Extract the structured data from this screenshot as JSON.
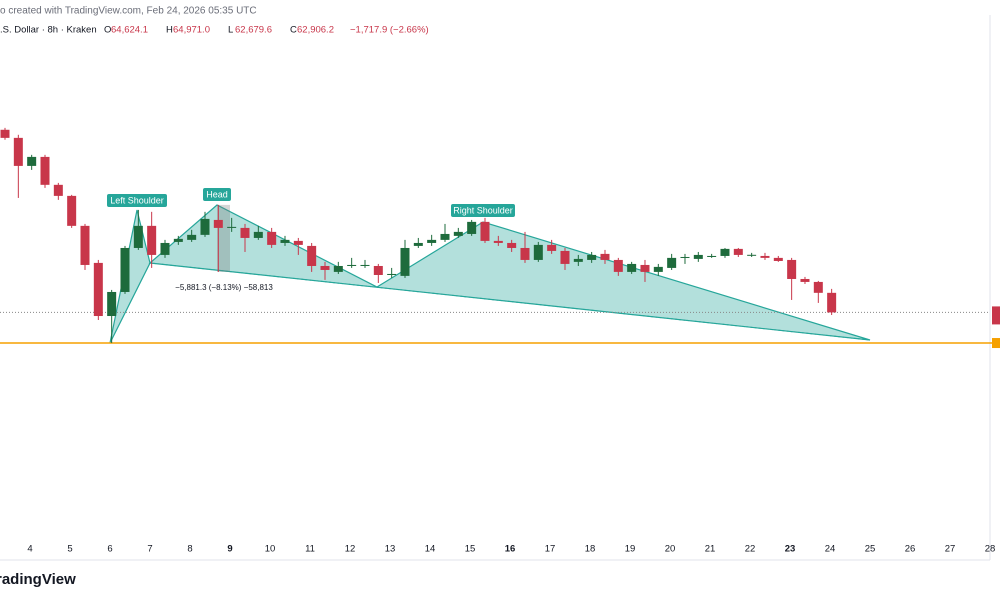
{
  "chart_data": {
    "type": "candlestick",
    "header": "o created with TradingView.com, Feb 24, 2026 05:35 UTC",
    "symbol": ".S. Dollar · 8h · Kraken",
    "legend_fields": [
      {
        "key": "O",
        "value": 64624.1,
        "label": "64,624.1"
      },
      {
        "key": "H",
        "value": 64971.0,
        "label": "64,971.0"
      },
      {
        "key": "L",
        "value": 62679.6,
        "label": "62,679.6"
      },
      {
        "key": "C",
        "value": 62906.2,
        "label": "62,906.2"
      }
    ],
    "change": {
      "value": -1717.9,
      "label": "−1,717.9 (−2.66%)"
    },
    "up_color": "#1e6b3c",
    "down_color": "#c8364a",
    "open": [
      78930,
      78220,
      75760,
      76550,
      74100,
      73130,
      70500,
      67250,
      62590,
      64700,
      68560,
      70500,
      67950,
      69090,
      69270,
      69710,
      71020,
      70320,
      70320,
      69440,
      69970,
      69000,
      69180,
      68740,
      66980,
      66460,
      66980,
      66980,
      66980,
      66190,
      66110,
      68740,
      69000,
      69270,
      69620,
      69790,
      70850,
      69180,
      69000,
      68560,
      67510,
      68830,
      68300,
      67340,
      67510,
      68040,
      67510,
      66460,
      67070,
      66460,
      66810,
      67690,
      67600,
      67770,
      67860,
      68480,
      67950,
      67860,
      67690,
      67510,
      65840,
      65580,
      64624.1
    ],
    "high": [
      79100,
      78490,
      76730,
      76730,
      74270,
      73220,
      70670,
      67510,
      64880,
      68740,
      71900,
      71730,
      69270,
      69620,
      70150,
      71730,
      72340,
      71200,
      70670,
      70500,
      70320,
      69620,
      69440,
      69000,
      67340,
      67340,
      67690,
      67510,
      67160,
      66810,
      69270,
      69440,
      69710,
      70670,
      70320,
      71020,
      71200,
      69620,
      69270,
      69970,
      69090,
      69270,
      68560,
      67950,
      68210,
      68390,
      67690,
      67340,
      67510,
      67160,
      68040,
      68040,
      68210,
      68040,
      68560,
      68560,
      68130,
      68130,
      67860,
      67690,
      66020,
      65670,
      64971.0
    ],
    "low": [
      78050,
      72950,
      75410,
      73830,
      72780,
      70320,
      66630,
      62240,
      60220,
      64530,
      68390,
      66810,
      67690,
      68830,
      69090,
      69530,
      66460,
      69970,
      68210,
      69270,
      68560,
      68740,
      67950,
      66460,
      65760,
      66280,
      66810,
      66810,
      65490,
      65930,
      65930,
      68560,
      68740,
      69090,
      69440,
      69620,
      69000,
      68740,
      68210,
      67250,
      67340,
      68040,
      66630,
      66980,
      67250,
      67160,
      66110,
      66280,
      65580,
      66110,
      66630,
      67160,
      67340,
      67690,
      67690,
      67770,
      67770,
      67510,
      67340,
      64000,
      65400,
      63740,
      62679.6
    ],
    "close": [
      78220,
      75760,
      76550,
      74100,
      73130,
      70500,
      67070,
      62590,
      64700,
      68560,
      70500,
      67950,
      69000,
      69360,
      69710,
      71110,
      70320,
      70410,
      69440,
      69970,
      68830,
      69270,
      68830,
      66980,
      66630,
      66980,
      67070,
      67070,
      66190,
      66280,
      68560,
      69000,
      69270,
      69790,
      69970,
      70850,
      69180,
      69000,
      68560,
      67510,
      68830,
      68300,
      67160,
      67600,
      67950,
      67510,
      66460,
      67160,
      66460,
      66900,
      67690,
      67770,
      67950,
      67860,
      68480,
      67950,
      67960,
      67690,
      67420,
      65840,
      65580,
      64624.1,
      62906.2
    ],
    "ylim": [
      42500,
      89000
    ],
    "support_level": 60220,
    "x_tick_labels": [
      "4",
      "5",
      "6",
      "7",
      "8",
      "9",
      "10",
      "11",
      "12",
      "13",
      "14",
      "15",
      "16",
      "17",
      "18",
      "19",
      "20",
      "21",
      "22",
      "23",
      "24",
      "25",
      "26",
      "27",
      "28"
    ],
    "pattern_labels": [
      "Left Shoulder",
      "Head",
      "Right Shoulder"
    ],
    "measure": {
      "value": -5881.3,
      "label": "−5,881.3 (−8.13%) −58,813"
    },
    "brand": "radingView"
  }
}
